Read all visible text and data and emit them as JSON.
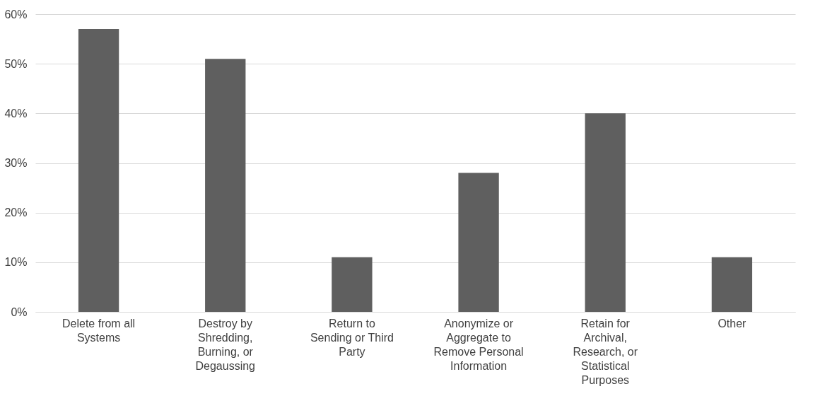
{
  "chart_data": {
    "type": "bar",
    "categories": [
      "Delete from all Systems",
      "Destroy by Shredding, Burning, or Degaussing",
      "Return to Sending or Third Party",
      "Anonymize or Aggregate to Remove Personal Information",
      "Retain for Archival, Research, or Statistical Purposes",
      "Other"
    ],
    "values": [
      57,
      51,
      11,
      28,
      40,
      11
    ],
    "color": "#5f5f5f",
    "ylim": [
      0,
      60
    ],
    "yticks": [
      {
        "value": 0,
        "label": "0%"
      },
      {
        "value": 10,
        "label": "10%"
      },
      {
        "value": 20,
        "label": "20%"
      },
      {
        "value": 30,
        "label": "30%"
      },
      {
        "value": 40,
        "label": "40%"
      },
      {
        "value": 50,
        "label": "50%"
      },
      {
        "value": 60,
        "label": "60%"
      }
    ],
    "grid": "y"
  }
}
